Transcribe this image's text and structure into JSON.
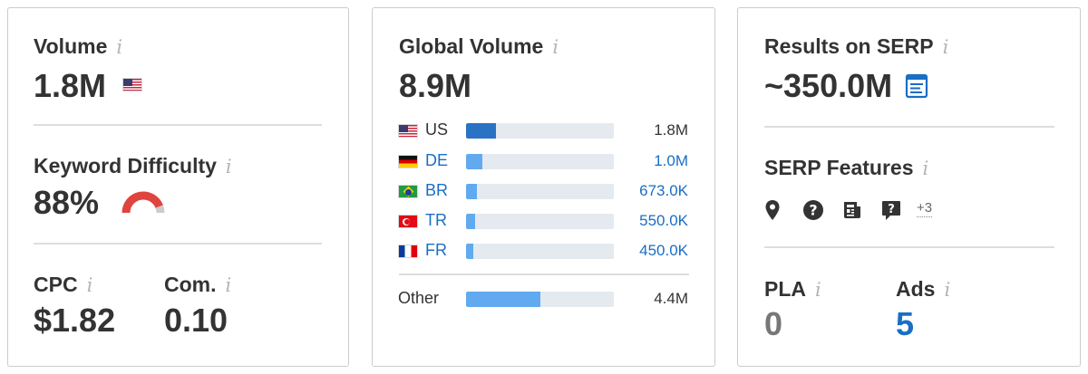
{
  "volume": {
    "label": "Volume",
    "info": "i",
    "value": "1.8M",
    "flag_icon": "us-flag-icon"
  },
  "keyword_difficulty": {
    "label": "Keyword Difficulty",
    "info": "i",
    "value": "88%",
    "percent": 88,
    "gauge_color": "#e0443e",
    "track_color": "#cccccc"
  },
  "cpc": {
    "label": "CPC",
    "info": "i",
    "value": "$1.82"
  },
  "competition": {
    "label": "Com.",
    "info": "i",
    "value": "0.10"
  },
  "global_volume": {
    "label": "Global Volume",
    "info": "i",
    "value": "8.9M",
    "countries": [
      {
        "code": "US",
        "value": "1.8M",
        "fraction": 0.2,
        "linked": false
      },
      {
        "code": "DE",
        "value": "1.0M",
        "fraction": 0.11,
        "linked": true
      },
      {
        "code": "BR",
        "value": "673.0K",
        "fraction": 0.075,
        "linked": true
      },
      {
        "code": "TR",
        "value": "550.0K",
        "fraction": 0.062,
        "linked": true
      },
      {
        "code": "FR",
        "value": "450.0K",
        "fraction": 0.05,
        "linked": true
      }
    ],
    "other": {
      "label": "Other",
      "value": "4.4M",
      "fraction": 0.5
    }
  },
  "results_on_serp": {
    "label": "Results on SERP",
    "info": "i",
    "value": "~350.0M",
    "icon": "serp-page-icon"
  },
  "serp_features": {
    "label": "SERP Features",
    "info": "i",
    "icons": [
      "map-pin-icon",
      "question-circle-icon",
      "news-icon",
      "question-bubble-icon"
    ],
    "more": "+3"
  },
  "pla": {
    "label": "PLA",
    "info": "i",
    "value": "0"
  },
  "ads": {
    "label": "Ads",
    "info": "i",
    "value": "5"
  },
  "colors": {
    "link": "#1a6ec5",
    "bar": "#61aaef",
    "bar_primary": "#2a72c4",
    "muted_value": "#777777"
  }
}
